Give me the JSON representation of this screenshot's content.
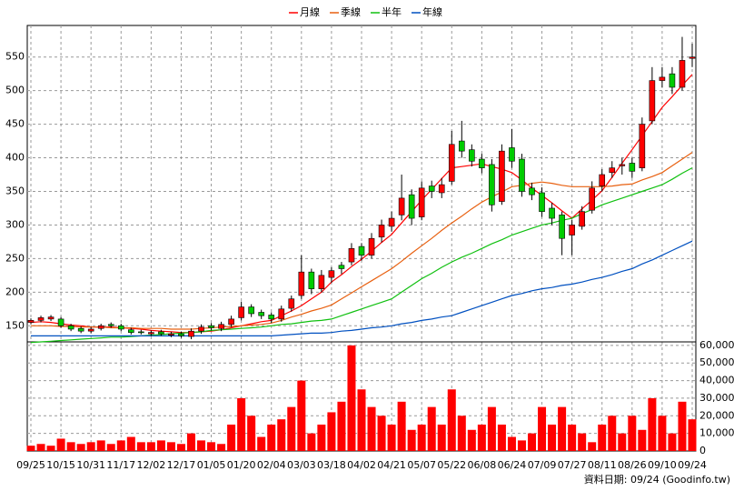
{
  "chart_data": {
    "type": "candlestick",
    "categories": [
      "09/25",
      null,
      null,
      "10/15",
      null,
      null,
      "10/31",
      null,
      null,
      "11/17",
      null,
      null,
      "12/02",
      null,
      null,
      "12/17",
      null,
      null,
      "01/05",
      null,
      null,
      "01/20",
      null,
      null,
      "02/04",
      null,
      null,
      "03/03",
      null,
      null,
      "03/18",
      null,
      null,
      "04/02",
      null,
      null,
      "04/21",
      null,
      null,
      "05/07",
      null,
      null,
      "05/22",
      null,
      null,
      "06/08",
      null,
      null,
      "06/24",
      null,
      null,
      "07/09",
      null,
      null,
      "07/27",
      null,
      null,
      "08/11",
      null,
      null,
      "08/26",
      null,
      null,
      "09/10",
      null,
      null,
      "09/24"
    ],
    "open": [
      155,
      158,
      160,
      160,
      150,
      146,
      142,
      146,
      152,
      150,
      144,
      141,
      138,
      141,
      136,
      138,
      134,
      142,
      150,
      146,
      152,
      162,
      178,
      170,
      166,
      160,
      176,
      195,
      230,
      205,
      222,
      240,
      245,
      268,
      255,
      282,
      298,
      315,
      345,
      312,
      358,
      348,
      365,
      425,
      412,
      398,
      390,
      335,
      415,
      398,
      355,
      348,
      325,
      315,
      285,
      298,
      322,
      358,
      378,
      388,
      392,
      385,
      455,
      515,
      525,
      505,
      548
    ],
    "high": [
      161,
      165,
      166,
      163,
      153,
      149,
      148,
      153,
      155,
      153,
      147,
      144,
      143,
      144,
      141,
      141,
      146,
      152,
      154,
      156,
      165,
      186,
      182,
      174,
      170,
      180,
      195,
      255,
      235,
      233,
      237,
      245,
      273,
      273,
      288,
      308,
      320,
      375,
      353,
      365,
      366,
      370,
      440,
      455,
      420,
      406,
      398,
      420,
      443,
      406,
      363,
      356,
      333,
      320,
      308,
      328,
      365,
      383,
      395,
      400,
      400,
      460,
      535,
      535,
      535,
      580,
      570
    ],
    "low": [
      152,
      155,
      157,
      147,
      142,
      139,
      139,
      143,
      147,
      142,
      137,
      137,
      135,
      135,
      133,
      132,
      130,
      138,
      143,
      142,
      148,
      158,
      163,
      160,
      154,
      156,
      171,
      190,
      197,
      200,
      214,
      227,
      240,
      247,
      250,
      274,
      290,
      307,
      300,
      307,
      340,
      340,
      360,
      400,
      387,
      377,
      320,
      330,
      385,
      342,
      337,
      312,
      300,
      255,
      255,
      293,
      317,
      350,
      370,
      375,
      370,
      380,
      450,
      505,
      495,
      500,
      535
    ],
    "close": [
      158,
      162,
      163,
      150,
      145,
      142,
      145,
      150,
      150,
      145,
      140,
      140,
      140,
      138,
      138,
      135,
      142,
      148,
      147,
      152,
      160,
      178,
      168,
      165,
      160,
      175,
      190,
      230,
      205,
      225,
      232,
      235,
      265,
      255,
      280,
      300,
      310,
      340,
      310,
      355,
      350,
      360,
      420,
      410,
      395,
      385,
      330,
      410,
      395,
      350,
      345,
      320,
      310,
      280,
      300,
      320,
      355,
      375,
      385,
      390,
      380,
      450,
      515,
      520,
      505,
      545,
      550
    ],
    "volume": [
      3000,
      4000,
      3000,
      7000,
      5000,
      4000,
      5000,
      6000,
      4000,
      6000,
      8000,
      5000,
      5000,
      6000,
      5000,
      4000,
      10000,
      6000,
      5000,
      4000,
      15000,
      30000,
      20000,
      8000,
      15000,
      18000,
      25000,
      40000,
      10000,
      15000,
      22000,
      28000,
      60000,
      35000,
      25000,
      20000,
      15000,
      28000,
      12000,
      15000,
      25000,
      15000,
      35000,
      20000,
      12000,
      15000,
      25000,
      15000,
      8000,
      6000,
      10000,
      25000,
      15000,
      25000,
      15000,
      10000,
      5000,
      15000,
      20000,
      10000,
      20000,
      12000,
      30000,
      20000,
      10000,
      28000,
      18000
    ],
    "moving_averages": [
      {
        "name": "月線",
        "color": "#ff0000",
        "values": [
          155,
          156,
          155,
          153,
          151,
          150,
          148,
          148,
          148,
          147,
          146,
          145,
          143,
          142,
          141,
          140,
          140,
          141,
          142,
          144,
          147,
          150,
          153,
          156,
          158,
          165,
          172,
          180,
          190,
          200,
          215,
          226,
          238,
          249,
          261,
          274,
          286,
          303,
          320,
          337,
          353,
          369,
          385,
          387,
          389,
          391,
          387,
          383,
          378,
          367,
          355,
          344,
          333,
          321,
          310,
          324,
          337,
          351,
          371,
          392,
          412,
          433,
          454,
          475,
          491,
          508,
          524
        ]
      },
      {
        "name": "季線",
        "color": "#e86010",
        "values": [
          150,
          150,
          150,
          149,
          149,
          148,
          148,
          148,
          147,
          147,
          147,
          146,
          146,
          146,
          145,
          145,
          145,
          146,
          147,
          148,
          149,
          150,
          151,
          152,
          154,
          158,
          163,
          167,
          172,
          176,
          181,
          190,
          199,
          208,
          217,
          226,
          235,
          246,
          258,
          269,
          280,
          292,
          303,
          313,
          324,
          334,
          342,
          349,
          357,
          359,
          362,
          364,
          362,
          359,
          357,
          357,
          357,
          357,
          358,
          360,
          361,
          367,
          372,
          378,
          388,
          398,
          408
        ]
      },
      {
        "name": "半年",
        "color": "#10c010",
        "values": [
          125,
          126,
          127,
          128,
          129,
          130,
          131,
          132,
          133,
          133,
          134,
          135,
          136,
          137,
          138,
          139,
          140,
          141,
          143,
          144,
          145,
          146,
          147,
          148,
          150,
          152,
          153,
          155,
          157,
          158,
          160,
          165,
          170,
          175,
          180,
          185,
          190,
          200,
          210,
          220,
          228,
          237,
          245,
          252,
          258,
          265,
          272,
          278,
          285,
          290,
          295,
          300,
          303,
          307,
          310,
          317,
          323,
          330,
          335,
          340,
          345,
          350,
          355,
          360,
          368,
          377,
          385
        ]
      },
      {
        "name": "年線",
        "color": "#0050c0",
        "values": [
          135,
          135,
          135,
          135,
          135,
          135,
          135,
          135,
          135,
          135,
          135,
          135,
          135,
          135,
          135,
          135,
          135,
          135,
          135,
          135,
          135,
          135,
          135,
          135,
          135,
          136,
          137,
          138,
          139,
          139,
          140,
          142,
          143,
          145,
          147,
          148,
          150,
          153,
          155,
          158,
          160,
          163,
          165,
          170,
          175,
          180,
          185,
          190,
          195,
          198,
          202,
          205,
          207,
          210,
          212,
          215,
          219,
          222,
          226,
          231,
          235,
          242,
          248,
          255,
          262,
          269,
          276
        ]
      }
    ],
    "ylim": [
      126,
      597
    ],
    "yticks": [
      150,
      200,
      250,
      300,
      350,
      400,
      450,
      500,
      550
    ],
    "volume_ylim": [
      0,
      62000
    ],
    "volume_yticks": [
      0,
      {
        "value": 10000,
        "label": "10,000"
      },
      {
        "value": 20000,
        "label": "20,000"
      },
      {
        "value": 30000,
        "label": "30,000"
      },
      {
        "value": 40000,
        "label": "40,000"
      },
      {
        "value": 50000,
        "label": "50,000"
      },
      {
        "value": 60000,
        "label": "60,000"
      }
    ],
    "up_color": "#ff0000",
    "down_color": "#00cc00",
    "volume_color": "#ff0000",
    "grid": true,
    "source": "資料日期: 09/24 (Goodinfo.tw)"
  }
}
